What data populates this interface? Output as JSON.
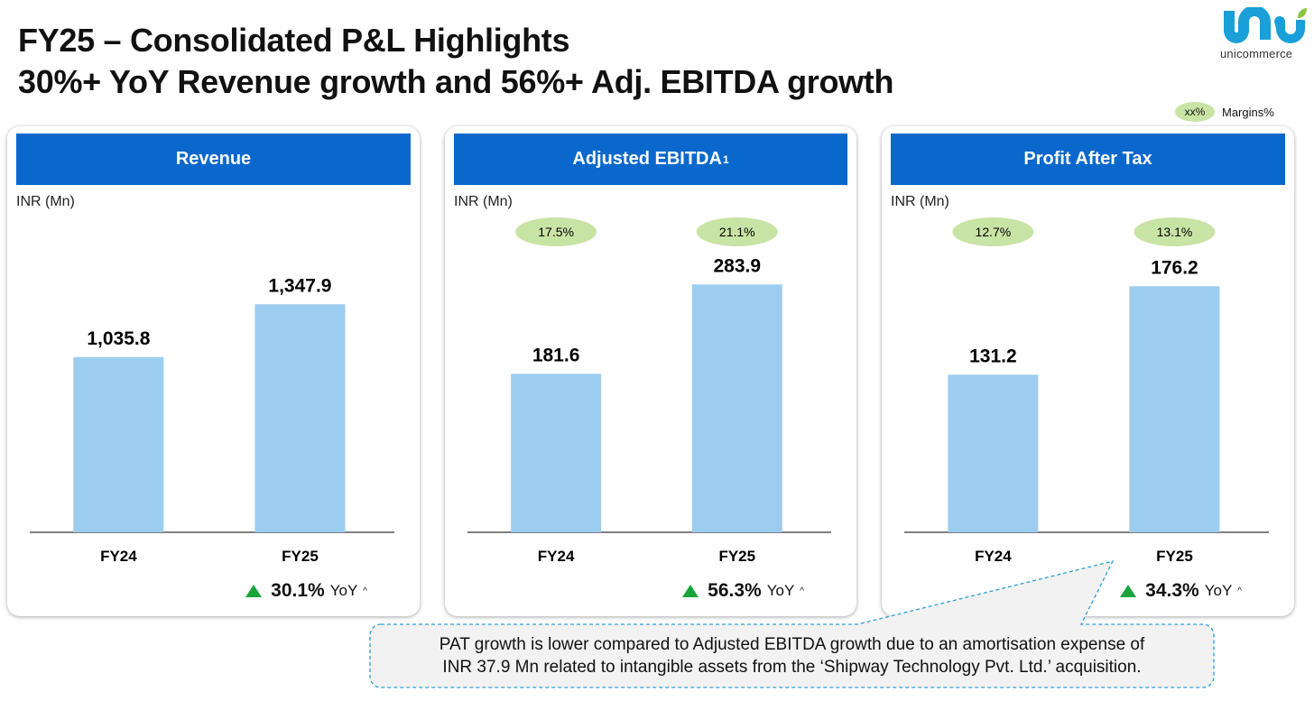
{
  "header": {
    "title_line1": "FY25 – Consolidated P&L Highlights",
    "title_line2": "30%+ YoY Revenue growth and 56%+ Adj. EBITDA growth"
  },
  "logo": {
    "text": "unicommerce"
  },
  "legend": {
    "pill": "xx%",
    "label": "Margins%"
  },
  "colors": {
    "header": "#0a68cc",
    "bar": "#9ccdf0",
    "pill": "#c8e4a5",
    "up": "#19a53c"
  },
  "chart_data": [
    {
      "type": "bar",
      "title": "Revenue",
      "title_sup": "",
      "unit": "INR (Mn)",
      "categories": [
        "FY24",
        "FY25"
      ],
      "values": [
        1035.8,
        1347.9
      ],
      "value_labels": [
        "1,035.8",
        "1,347.9"
      ],
      "margins": [],
      "ylim": [
        0,
        1760
      ],
      "yoy_value": "30.1%",
      "yoy_label": "YoY",
      "yoy_sup": "^"
    },
    {
      "type": "bar",
      "title": "Adjusted EBITDA",
      "title_sup": "1",
      "unit": "INR (Mn)",
      "categories": [
        "FY24",
        "FY25"
      ],
      "values": [
        181.6,
        283.9
      ],
      "value_labels": [
        "181.6",
        "283.9"
      ],
      "margins": [
        "17.5%",
        "21.1%"
      ],
      "ylim": [
        0,
        341
      ],
      "yoy_value": "56.3%",
      "yoy_label": "YoY",
      "yoy_sup": "^"
    },
    {
      "type": "bar",
      "title": "Profit After Tax",
      "title_sup": "",
      "unit": "INR (Mn)",
      "categories": [
        "FY24",
        "FY25"
      ],
      "values": [
        131.2,
        176.2
      ],
      "value_labels": [
        "131.2",
        "176.2"
      ],
      "margins": [
        "12.7%",
        "13.1%"
      ],
      "ylim": [
        51,
        202.5
      ],
      "yoy_value": "34.3%",
      "yoy_label": "YoY",
      "yoy_sup": "^"
    }
  ],
  "callout": {
    "line1": "PAT growth is lower compared to Adjusted EBITDA growth due to an amortisation expense of",
    "line2": "INR 37.9 Mn related to intangible assets from the ‘Shipway Technology Pvt. Ltd.’ acquisition."
  }
}
